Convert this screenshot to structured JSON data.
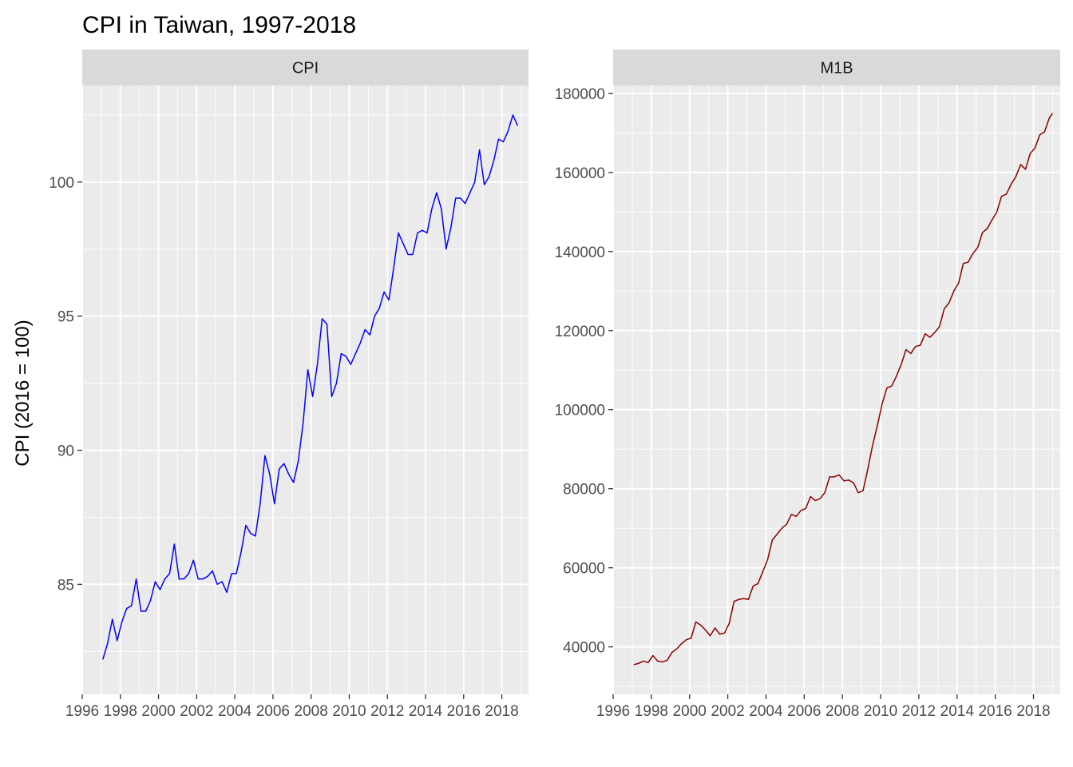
{
  "title": "CPI in Taiwan, 1997-2018",
  "ylabel": "CPI (2016 = 100)",
  "colors": {
    "panel_bg": "#ebebeb",
    "strip_bg": "#d9d9d9",
    "grid": "#ffffff",
    "cpi_line": "#0000ff",
    "m1b_line": "#8b0000"
  },
  "chart_data": [
    {
      "type": "line",
      "panel_label": "CPI",
      "xlim": [
        1996,
        2019.4
      ],
      "ylim": [
        80.9,
        103.6
      ],
      "x_ticks": [
        1996,
        1998,
        2000,
        2002,
        2004,
        2006,
        2008,
        2010,
        2012,
        2014,
        2016,
        2018
      ],
      "y_ticks": [
        85,
        90,
        95,
        100
      ],
      "grid": true,
      "series": [
        {
          "color": "#0000ff",
          "points": [
            [
              1997.08,
              82.2
            ],
            [
              1997.33,
              82.8
            ],
            [
              1997.58,
              83.7
            ],
            [
              1997.83,
              82.9
            ],
            [
              1998.08,
              83.6
            ],
            [
              1998.33,
              84.1
            ],
            [
              1998.58,
              84.2
            ],
            [
              1998.83,
              85.2
            ],
            [
              1999.08,
              84.0
            ],
            [
              1999.33,
              84.0
            ],
            [
              1999.58,
              84.4
            ],
            [
              1999.83,
              85.1
            ],
            [
              2000.08,
              84.8
            ],
            [
              2000.33,
              85.2
            ],
            [
              2000.58,
              85.4
            ],
            [
              2000.83,
              86.5
            ],
            [
              2001.08,
              85.2
            ],
            [
              2001.33,
              85.2
            ],
            [
              2001.58,
              85.4
            ],
            [
              2001.83,
              85.9
            ],
            [
              2002.08,
              85.2
            ],
            [
              2002.33,
              85.2
            ],
            [
              2002.58,
              85.3
            ],
            [
              2002.83,
              85.5
            ],
            [
              2003.08,
              85.0
            ],
            [
              2003.33,
              85.1
            ],
            [
              2003.58,
              84.7
            ],
            [
              2003.83,
              85.4
            ],
            [
              2004.08,
              85.4
            ],
            [
              2004.33,
              86.2
            ],
            [
              2004.58,
              87.2
            ],
            [
              2004.83,
              86.9
            ],
            [
              2005.08,
              86.8
            ],
            [
              2005.33,
              88.0
            ],
            [
              2005.58,
              89.8
            ],
            [
              2005.83,
              89.1
            ],
            [
              2006.08,
              88.0
            ],
            [
              2006.33,
              89.3
            ],
            [
              2006.58,
              89.5
            ],
            [
              2006.83,
              89.1
            ],
            [
              2007.08,
              88.8
            ],
            [
              2007.33,
              89.6
            ],
            [
              2007.58,
              91.0
            ],
            [
              2007.83,
              93.0
            ],
            [
              2008.08,
              92.0
            ],
            [
              2008.33,
              93.2
            ],
            [
              2008.58,
              94.9
            ],
            [
              2008.83,
              94.7
            ],
            [
              2009.08,
              92.0
            ],
            [
              2009.33,
              92.5
            ],
            [
              2009.58,
              93.6
            ],
            [
              2009.83,
              93.5
            ],
            [
              2010.08,
              93.2
            ],
            [
              2010.33,
              93.6
            ],
            [
              2010.58,
              94.0
            ],
            [
              2010.83,
              94.5
            ],
            [
              2011.08,
              94.3
            ],
            [
              2011.33,
              95.0
            ],
            [
              2011.58,
              95.3
            ],
            [
              2011.83,
              95.9
            ],
            [
              2012.08,
              95.6
            ],
            [
              2012.33,
              96.8
            ],
            [
              2012.58,
              98.1
            ],
            [
              2012.83,
              97.7
            ],
            [
              2013.08,
              97.3
            ],
            [
              2013.33,
              97.3
            ],
            [
              2013.58,
              98.1
            ],
            [
              2013.83,
              98.2
            ],
            [
              2014.08,
              98.1
            ],
            [
              2014.33,
              99.0
            ],
            [
              2014.58,
              99.6
            ],
            [
              2014.83,
              99.0
            ],
            [
              2015.08,
              97.5
            ],
            [
              2015.33,
              98.3
            ],
            [
              2015.58,
              99.4
            ],
            [
              2015.83,
              99.4
            ],
            [
              2016.08,
              99.2
            ],
            [
              2016.33,
              99.6
            ],
            [
              2016.58,
              100.0
            ],
            [
              2016.83,
              101.2
            ],
            [
              2017.08,
              99.9
            ],
            [
              2017.33,
              100.2
            ],
            [
              2017.58,
              100.8
            ],
            [
              2017.83,
              101.6
            ],
            [
              2018.08,
              101.5
            ],
            [
              2018.33,
              101.9
            ],
            [
              2018.58,
              102.5
            ],
            [
              2018.83,
              102.1
            ]
          ]
        }
      ]
    },
    {
      "type": "line",
      "panel_label": "M1B",
      "xlim": [
        1996,
        2019.4
      ],
      "ylim": [
        28000,
        182000
      ],
      "x_ticks": [
        1996,
        1998,
        2000,
        2002,
        2004,
        2006,
        2008,
        2010,
        2012,
        2014,
        2016,
        2018
      ],
      "y_ticks": [
        40000,
        60000,
        80000,
        100000,
        120000,
        140000,
        160000,
        180000
      ],
      "grid": true,
      "series": [
        {
          "color": "#8b0000",
          "points": [
            [
              1997.08,
              35500
            ],
            [
              1997.33,
              35800
            ],
            [
              1997.58,
              36400
            ],
            [
              1997.83,
              36000
            ],
            [
              1998.08,
              37800
            ],
            [
              1998.33,
              36400
            ],
            [
              1998.58,
              36200
            ],
            [
              1998.83,
              36600
            ],
            [
              1999.08,
              38600
            ],
            [
              1999.33,
              39500
            ],
            [
              1999.58,
              40800
            ],
            [
              1999.83,
              41800
            ],
            [
              2000.08,
              42200
            ],
            [
              2000.33,
              46300
            ],
            [
              2000.58,
              45500
            ],
            [
              2000.83,
              44300
            ],
            [
              2001.08,
              42800
            ],
            [
              2001.33,
              44800
            ],
            [
              2001.58,
              43200
            ],
            [
              2001.83,
              43500
            ],
            [
              2002.08,
              46000
            ],
            [
              2002.33,
              51500
            ],
            [
              2002.58,
              52000
            ],
            [
              2002.83,
              52200
            ],
            [
              2003.08,
              52000
            ],
            [
              2003.33,
              55400
            ],
            [
              2003.58,
              56000
            ],
            [
              2003.83,
              59000
            ],
            [
              2004.08,
              62000
            ],
            [
              2004.33,
              67000
            ],
            [
              2004.58,
              68500
            ],
            [
              2004.83,
              70000
            ],
            [
              2005.08,
              71000
            ],
            [
              2005.33,
              73500
            ],
            [
              2005.58,
              73000
            ],
            [
              2005.83,
              74500
            ],
            [
              2006.08,
              75000
            ],
            [
              2006.33,
              78000
            ],
            [
              2006.58,
              77000
            ],
            [
              2006.83,
              77500
            ],
            [
              2007.08,
              79000
            ],
            [
              2007.33,
              83000
            ],
            [
              2007.58,
              83000
            ],
            [
              2007.83,
              83500
            ],
            [
              2008.08,
              82000
            ],
            [
              2008.33,
              82200
            ],
            [
              2008.58,
              81500
            ],
            [
              2008.83,
              79000
            ],
            [
              2009.08,
              79500
            ],
            [
              2009.33,
              85000
            ],
            [
              2009.58,
              91000
            ],
            [
              2009.83,
              96000
            ],
            [
              2010.08,
              101500
            ],
            [
              2010.33,
              105500
            ],
            [
              2010.58,
              106000
            ],
            [
              2010.83,
              108500
            ],
            [
              2011.08,
              111500
            ],
            [
              2011.33,
              115200
            ],
            [
              2011.58,
              114200
            ],
            [
              2011.83,
              116000
            ],
            [
              2012.08,
              116300
            ],
            [
              2012.33,
              119200
            ],
            [
              2012.58,
              118300
            ],
            [
              2012.83,
              119500
            ],
            [
              2013.08,
              121000
            ],
            [
              2013.33,
              125500
            ],
            [
              2013.58,
              127000
            ],
            [
              2013.83,
              130000
            ],
            [
              2014.08,
              132000
            ],
            [
              2014.33,
              137000
            ],
            [
              2014.58,
              137300
            ],
            [
              2014.83,
              139500
            ],
            [
              2015.08,
              141000
            ],
            [
              2015.33,
              144800
            ],
            [
              2015.58,
              145800
            ],
            [
              2015.83,
              148000
            ],
            [
              2016.08,
              150000
            ],
            [
              2016.33,
              154000
            ],
            [
              2016.58,
              154500
            ],
            [
              2016.83,
              157000
            ],
            [
              2017.08,
              159000
            ],
            [
              2017.33,
              162000
            ],
            [
              2017.58,
              160800
            ],
            [
              2017.83,
              164800
            ],
            [
              2018.08,
              166200
            ],
            [
              2018.33,
              169500
            ],
            [
              2018.58,
              170300
            ],
            [
              2018.83,
              173800
            ],
            [
              2019.0,
              175000
            ]
          ]
        }
      ]
    }
  ]
}
